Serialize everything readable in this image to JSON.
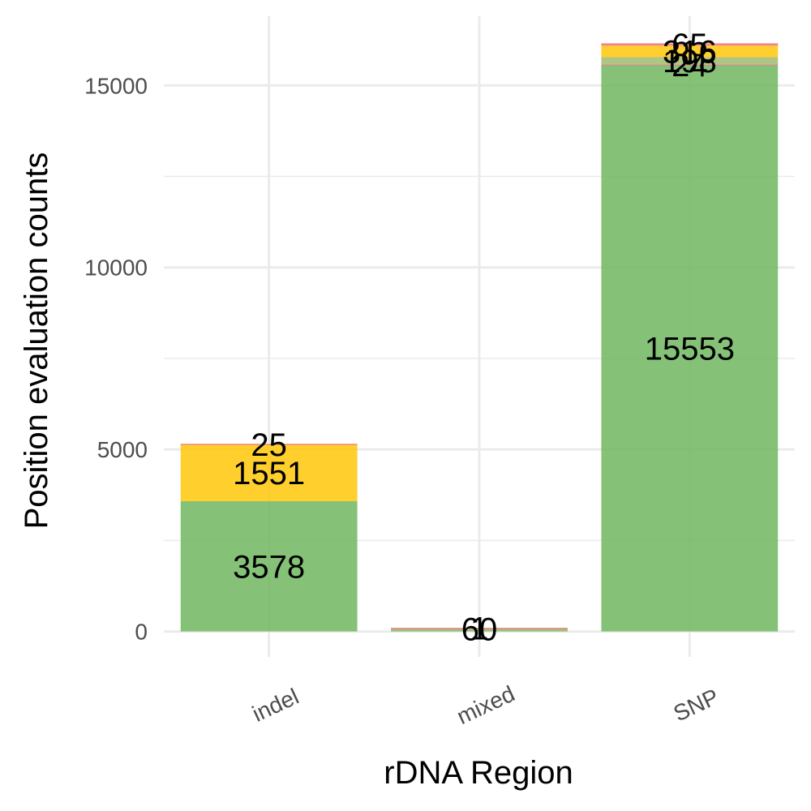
{
  "chart_data": {
    "type": "bar",
    "stacked": true,
    "categories": [
      "indel",
      "mixed",
      "SNP"
    ],
    "series": [
      {
        "color": "#6ab559",
        "values": [
          3578,
          34,
          15553
        ]
      },
      {
        "color": "#d27a7a",
        "values": [
          0,
          0,
          24
        ]
      },
      {
        "color": "#9fb86a",
        "values": [
          0,
          60,
          198
        ]
      },
      {
        "color": "#ffc400",
        "values": [
          1551,
          0,
          316
        ]
      },
      {
        "color": "#f26a6a",
        "values": [
          25,
          1,
          65
        ]
      }
    ],
    "data_labels": [
      [
        "3578",
        "",
        "15553"
      ],
      [
        "",
        "",
        "24"
      ],
      [
        "",
        "60",
        "198"
      ],
      [
        "1551",
        "",
        "316"
      ],
      [
        "25",
        "1",
        "65"
      ]
    ],
    "xlabel": "rDNA Region",
    "ylabel": "Position evaluation counts",
    "yticks": [
      0,
      5000,
      10000,
      15000
    ],
    "ylim": [
      -700,
      16900
    ],
    "grid": true,
    "legend": "none"
  }
}
